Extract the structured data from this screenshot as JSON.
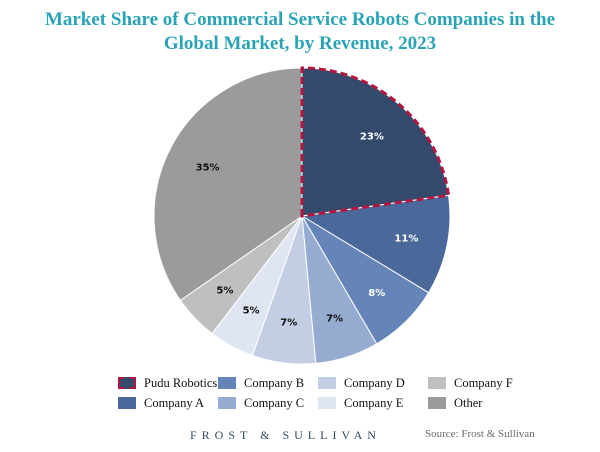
{
  "chart_data": {
    "type": "pie",
    "title": "Market Share of Commercial Service Robots Companies in the Global Market, by Revenue, 2023",
    "title_lines": [
      "Market Share of Commercial Service Robots Companies in the",
      "Global Market, by Revenue, 2023"
    ],
    "slices": [
      {
        "label": "Pudu Robotics",
        "value": 23,
        "display": "23%",
        "color": "#344a6c",
        "highlight": true
      },
      {
        "label": "Company A",
        "value": 11,
        "display": "11%",
        "color": "#4a6899"
      },
      {
        "label": "Company B",
        "value": 8,
        "display": "8%",
        "color": "#6585b8"
      },
      {
        "label": "Company C",
        "value": 7,
        "display": "7%",
        "color": "#96abd0"
      },
      {
        "label": "Company D",
        "value": 7,
        "display": "7%",
        "color": "#c3cde3"
      },
      {
        "label": "Company E",
        "value": 5,
        "display": "5%",
        "color": "#dfe5f1"
      },
      {
        "label": "Company F",
        "value": 5,
        "display": "5%",
        "color": "#bfbfbf"
      },
      {
        "label": "Other",
        "value": 35,
        "display": "35%",
        "color": "#9b9b9b"
      }
    ],
    "highlight_border_color": "#b3173f",
    "legend_position": "bottom"
  },
  "legend_order": [
    "Pudu Robotics",
    "Company A",
    "Company B",
    "Company C",
    "Company D",
    "Company E",
    "Company F",
    "Other"
  ],
  "footer": {
    "brand": "FROST & SULLIVAN",
    "source": "Source: Frost & Sullivan"
  }
}
